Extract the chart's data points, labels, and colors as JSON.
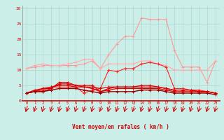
{
  "x": [
    0,
    1,
    2,
    3,
    4,
    5,
    6,
    7,
    8,
    9,
    10,
    11,
    12,
    13,
    14,
    15,
    16,
    17,
    18,
    19,
    20,
    21,
    22,
    23
  ],
  "line1": [
    10.5,
    11,
    11.5,
    11.5,
    11.5,
    11.5,
    11.5,
    12,
    13,
    10.5,
    15,
    18.5,
    21,
    21,
    27,
    26.5,
    26.5,
    26.5,
    16.5,
    11,
    11,
    11,
    6,
    13
  ],
  "line2": [
    10.5,
    11.5,
    12,
    11.5,
    11.5,
    12,
    12.5,
    13.5,
    13.5,
    10.5,
    12,
    12,
    12,
    12,
    13,
    13,
    12,
    11.5,
    10,
    10,
    10,
    10,
    10,
    13
  ],
  "line3": [
    2.5,
    3,
    3.5,
    4.5,
    4.5,
    4.5,
    4.5,
    2.5,
    3.5,
    4,
    10,
    9.5,
    10.5,
    10.5,
    12,
    12.5,
    12,
    11,
    4,
    4,
    3.5,
    3.5,
    3,
    2.5
  ],
  "line4": [
    2.5,
    3,
    4,
    4.5,
    5,
    5,
    4.5,
    4.5,
    4.5,
    4,
    4.5,
    4.5,
    4.5,
    4.5,
    5,
    5,
    4.5,
    4,
    3.5,
    3.5,
    3.5,
    3,
    3,
    2.5
  ],
  "line5": [
    2.5,
    3.5,
    4,
    4,
    6,
    6,
    5,
    5,
    5,
    3,
    4,
    4.5,
    4.5,
    4.5,
    4.5,
    4.5,
    4.5,
    4,
    3.5,
    3.5,
    3.5,
    3,
    3,
    2.5
  ],
  "line6": [
    2.5,
    3,
    3,
    4,
    5.5,
    5.5,
    5,
    4.5,
    4,
    3,
    3.5,
    4,
    4,
    4,
    4,
    4,
    4,
    3.5,
    3,
    3,
    3,
    3,
    3,
    2.5
  ],
  "line7": [
    2.5,
    3,
    3,
    3.5,
    4,
    4,
    4,
    3.5,
    3,
    2.5,
    3,
    3,
    3,
    3,
    3.5,
    3.5,
    3.5,
    3,
    2.5,
    2.5,
    2.5,
    2.5,
    2.5,
    2
  ],
  "bg_color": "#cceee8",
  "grid_color": "#aad8d0",
  "line1_color": "#ff9999",
  "line2_color": "#ffaaaa",
  "line3_color": "#ff2222",
  "line4_color": "#dd0000",
  "line5_color": "#dd0000",
  "line6_color": "#dd0000",
  "line7_color": "#990000",
  "xlabel": "Vent moyen/en rafales ( km/h )",
  "ylabel_ticks": [
    0,
    5,
    10,
    15,
    20,
    25,
    30
  ],
  "xlim": [
    -0.5,
    23.5
  ],
  "ylim": [
    -6,
    31
  ],
  "plot_ylim": [
    0,
    31
  ]
}
